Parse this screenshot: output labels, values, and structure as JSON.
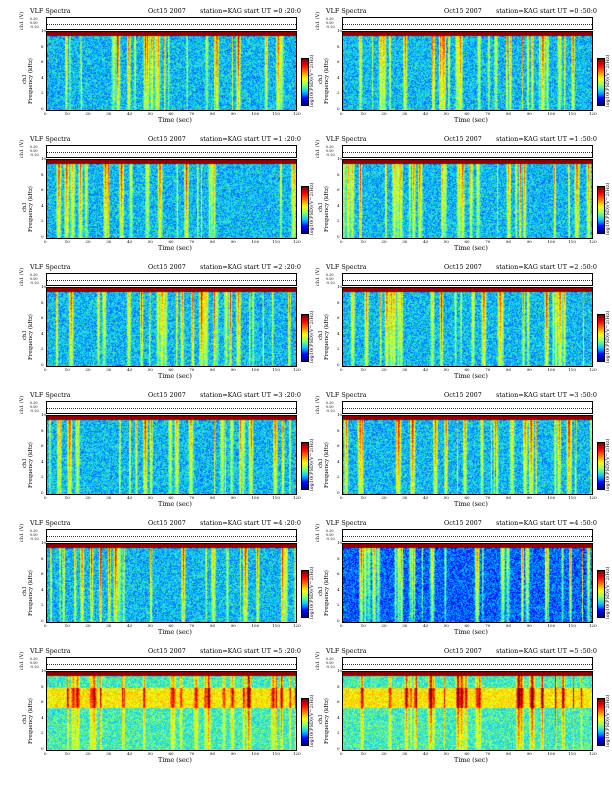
{
  "header": {
    "title": "VLF Spectra",
    "date": "Oct15 2007",
    "station": "station=KAG",
    "start_prefix": "start UT ="
  },
  "axes": {
    "ch_label": "ch1 (V)",
    "strip_ticks": [
      "0.20",
      "0.00",
      "-0.20"
    ],
    "ylabel": "Frequency (kHz)",
    "ylabel_ch": "ch1",
    "yticks": [
      "0",
      "2",
      "4",
      "6",
      "8",
      "10"
    ],
    "xlabel": "Time (sec)",
    "xticks": [
      "0",
      "10",
      "20",
      "30",
      "40",
      "50",
      "60",
      "70",
      "80",
      "90",
      "100",
      "110",
      "120"
    ],
    "colorbar_label": "log10(PSD)(V^2/Hz)"
  },
  "panels": [
    {
      "start": "0 :20:0"
    },
    {
      "start": "0 :50:0"
    },
    {
      "start": "1 :20:0"
    },
    {
      "start": "1 :50:0"
    },
    {
      "start": "2 :20:0"
    },
    {
      "start": "2 :50:0"
    },
    {
      "start": "3 :20:0"
    },
    {
      "start": "3 :50:0"
    },
    {
      "start": "4 :20:0"
    },
    {
      "start": "4 :50:0"
    },
    {
      "start": "5 :20:0"
    },
    {
      "start": "5 :50:0"
    }
  ],
  "chart_data": {
    "type": "heatmap",
    "xlabel": "Time (sec)",
    "ylabel": "Frequency (kHz)",
    "xlim": [
      0,
      120
    ],
    "ylim": [
      0,
      10
    ],
    "colorbar": "log10(PSD)(V^2/Hz)",
    "colormap": [
      "#00007f",
      "#0000ff",
      "#00c8ff",
      "#7fff7f",
      "#ffff00",
      "#ff7f00",
      "#ff0000",
      "#7f0000"
    ],
    "grid": false,
    "panel_count": 12
  }
}
